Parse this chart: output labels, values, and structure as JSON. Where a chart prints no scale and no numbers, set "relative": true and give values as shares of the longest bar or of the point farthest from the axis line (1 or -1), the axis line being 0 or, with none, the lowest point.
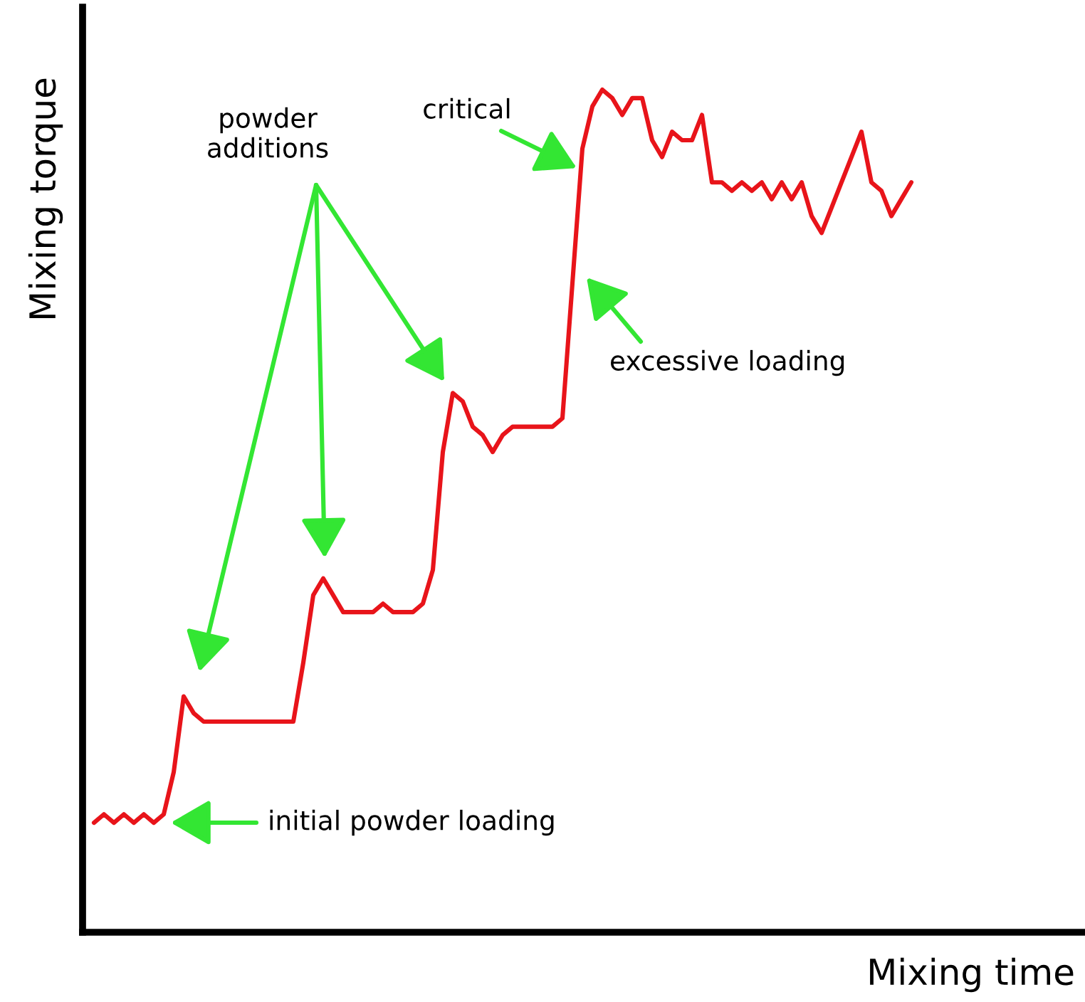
{
  "chart_data": {
    "type": "line",
    "relative": true,
    "xlabel": "Mixing time",
    "ylabel": "Mixing torque",
    "categories": [
      null,
      null,
      null,
      null,
      null,
      null,
      null,
      null,
      null,
      null,
      null,
      null,
      null,
      null,
      null,
      null,
      null,
      null,
      null,
      null,
      null,
      null,
      null,
      null,
      null,
      null,
      null,
      null,
      null,
      null,
      null,
      null,
      null,
      null,
      null,
      null,
      null,
      null,
      null,
      null,
      null,
      null,
      null,
      null,
      null,
      null,
      null,
      null,
      null,
      null,
      null,
      null,
      null,
      null,
      null,
      null,
      null,
      null,
      null,
      null,
      null,
      null,
      null,
      null,
      null,
      null,
      null,
      null,
      null,
      null,
      null,
      null,
      null,
      null,
      null,
      null,
      null,
      null,
      null,
      null,
      null,
      null,
      null
    ],
    "series": [
      {
        "color": "#e8141a",
        "values": [
          0.13,
          0.14,
          0.13,
          0.14,
          0.13,
          0.14,
          0.13,
          0.14,
          0.19,
          0.28,
          0.26,
          0.25,
          0.25,
          0.25,
          0.25,
          0.25,
          0.25,
          0.25,
          0.25,
          0.25,
          0.25,
          0.32,
          0.4,
          0.42,
          0.4,
          0.38,
          0.38,
          0.38,
          0.38,
          0.39,
          0.38,
          0.38,
          0.38,
          0.39,
          0.43,
          0.57,
          0.64,
          0.63,
          0.6,
          0.59,
          0.57,
          0.59,
          0.6,
          0.6,
          0.6,
          0.6,
          0.6,
          0.61,
          0.77,
          0.93,
          0.98,
          1.0,
          0.99,
          0.97,
          0.99,
          0.99,
          0.94,
          0.92,
          0.95,
          0.94,
          0.94,
          0.97,
          0.89,
          0.89,
          0.88,
          0.89,
          0.88,
          0.89,
          0.87,
          0.89,
          0.87,
          0.89,
          0.85,
          0.83,
          0.86,
          0.89,
          0.92,
          0.95,
          0.89,
          0.88,
          0.85,
          0.87,
          0.89
        ]
      }
    ],
    "annotations": [
      "powder additions",
      "critical",
      "excessive loading",
      "initial powder loading"
    ]
  }
}
